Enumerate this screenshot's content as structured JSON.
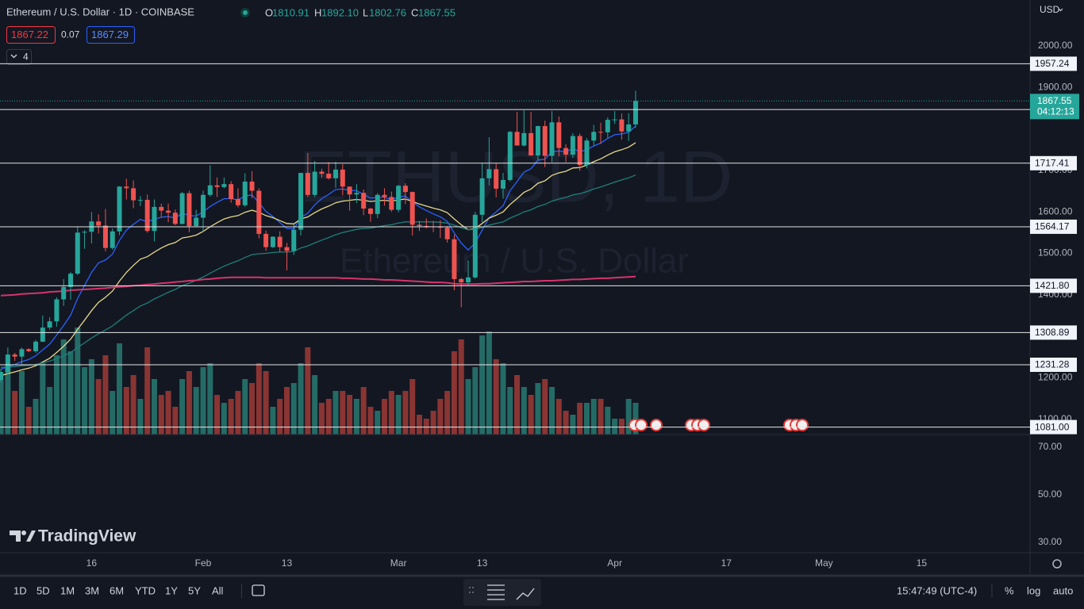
{
  "header": {
    "symbol": "Ethereum / U.S. Dollar · 1D · COINBASE",
    "o": "O",
    "h": "H",
    "l": "L",
    "c": "C",
    "ohlc_labels": [
      "1810.91",
      "1892.10",
      "1802.76",
      "1867.55"
    ],
    "bid": 1867.22,
    "spread": 0.07,
    "ask": 1867.29,
    "legend_count": 4
  },
  "branding": {
    "logo_text": "TradingView"
  },
  "toolbar": {
    "ranges": [
      "1D",
      "5D",
      "1M",
      "3M",
      "6M",
      "YTD",
      "1Y",
      "5Y",
      "All"
    ],
    "clock": "15:47:49 (UTC-4)",
    "percent": "%",
    "log": "log",
    "auto": "auto"
  },
  "chart_data": {
    "type": "candlestick",
    "watermark_symbol": "ETHUSD, 1D",
    "watermark_name": "Ethereum / U.S. Dollar",
    "currency": "USD",
    "up_color": "#26a69a",
    "down_color": "#ef5350",
    "volume_up_color": "#246b66",
    "volume_down_color": "#8a3533",
    "x": [
      "01-03",
      "01-04",
      "01-05",
      "01-06",
      "01-07",
      "01-08",
      "01-09",
      "01-10",
      "01-11",
      "01-12",
      "01-13",
      "01-14",
      "01-15",
      "01-16",
      "01-17",
      "01-18",
      "01-19",
      "01-20",
      "01-21",
      "01-22",
      "01-23",
      "01-24",
      "01-25",
      "01-26",
      "01-27",
      "01-28",
      "01-29",
      "01-30",
      "01-31",
      "02-01",
      "02-02",
      "02-03",
      "02-04",
      "02-05",
      "02-06",
      "02-07",
      "02-08",
      "02-09",
      "02-10",
      "02-11",
      "02-12",
      "02-13",
      "02-14",
      "02-15",
      "02-16",
      "02-17",
      "02-18",
      "02-19",
      "02-20",
      "02-21",
      "02-22",
      "02-23",
      "02-24",
      "02-25",
      "02-26",
      "02-27",
      "02-28",
      "03-01",
      "03-02",
      "03-03",
      "03-04",
      "03-05",
      "03-06",
      "03-07",
      "03-08",
      "03-09",
      "03-10",
      "03-11",
      "03-12",
      "03-13",
      "03-14",
      "03-15",
      "03-16",
      "03-17",
      "03-18",
      "03-19",
      "03-20",
      "03-21",
      "03-22",
      "03-23",
      "03-24",
      "03-25",
      "03-26",
      "03-27",
      "03-28",
      "03-29",
      "03-30",
      "03-31",
      "04-01",
      "04-02",
      "04-03",
      "04-04"
    ],
    "open": [
      1195,
      1214,
      1256,
      1251,
      1269,
      1264,
      1287,
      1321,
      1336,
      1389,
      1419,
      1451,
      1550,
      1552,
      1577,
      1567,
      1513,
      1553,
      1661,
      1657,
      1628,
      1629,
      1554,
      1612,
      1603,
      1598,
      1571,
      1645,
      1566,
      1586,
      1641,
      1664,
      1660,
      1667,
      1631,
      1616,
      1673,
      1651,
      1547,
      1515,
      1540,
      1515,
      1506,
      1557,
      1694,
      1641,
      1697,
      1692,
      1681,
      1702,
      1661,
      1642,
      1646,
      1608,
      1595,
      1641,
      1636,
      1605,
      1663,
      1648,
      1569,
      1566,
      1565,
      1564,
      1562,
      1534,
      1438,
      1430,
      1442,
      1593,
      1681,
      1703,
      1656,
      1677,
      1793,
      1760,
      1790,
      1736,
      1807,
      1735,
      1816,
      1754,
      1738,
      1783,
      1713,
      1772,
      1793,
      1792,
      1822,
      1823,
      1794,
      1810.91
    ],
    "high": [
      1222,
      1273,
      1260,
      1273,
      1271,
      1291,
      1350,
      1346,
      1394,
      1438,
      1455,
      1565,
      1556,
      1600,
      1594,
      1607,
      1560,
      1662,
      1680,
      1676,
      1638,
      1642,
      1630,
      1620,
      1620,
      1606,
      1648,
      1651,
      1605,
      1651,
      1712,
      1683,
      1683,
      1674,
      1657,
      1693,
      1698,
      1657,
      1555,
      1541,
      1553,
      1525,
      1570,
      1694,
      1742,
      1723,
      1704,
      1720,
      1721,
      1715,
      1661,
      1667,
      1654,
      1610,
      1645,
      1657,
      1649,
      1665,
      1669,
      1649,
      1578,
      1584,
      1578,
      1580,
      1566,
      1545,
      1441,
      1483,
      1600,
      1719,
      1780,
      1718,
      1694,
      1795,
      1841,
      1845,
      1841,
      1807,
      1820,
      1843,
      1830,
      1763,
      1790,
      1789,
      1778,
      1810,
      1815,
      1828,
      1843,
      1837,
      1838,
      1892.1
    ],
    "low": [
      1190,
      1209,
      1241,
      1233,
      1262,
      1260,
      1286,
      1316,
      1323,
      1373,
      1388,
      1448,
      1511,
      1524,
      1548,
      1505,
      1509,
      1544,
      1630,
      1609,
      1614,
      1550,
      1529,
      1587,
      1575,
      1568,
      1570,
      1551,
      1563,
      1552,
      1637,
      1636,
      1657,
      1622,
      1611,
      1612,
      1633,
      1536,
      1506,
      1513,
      1503,
      1459,
      1496,
      1543,
      1636,
      1636,
      1683,
      1678,
      1658,
      1640,
      1603,
      1621,
      1592,
      1576,
      1585,
      1615,
      1600,
      1599,
      1619,
      1543,
      1554,
      1560,
      1551,
      1537,
      1526,
      1411,
      1370,
      1423,
      1439,
      1575,
      1664,
      1635,
      1632,
      1673,
      1765,
      1758,
      1739,
      1726,
      1708,
      1720,
      1734,
      1720,
      1730,
      1699,
      1705,
      1760,
      1764,
      1779,
      1812,
      1774,
      1771,
      1802.76
    ],
    "close": [
      1214,
      1256,
      1251,
      1269,
      1264,
      1287,
      1321,
      1336,
      1389,
      1419,
      1451,
      1550,
      1552,
      1577,
      1567,
      1513,
      1553,
      1661,
      1657,
      1628,
      1629,
      1554,
      1612,
      1603,
      1598,
      1571,
      1645,
      1566,
      1586,
      1641,
      1664,
      1660,
      1667,
      1631,
      1616,
      1673,
      1651,
      1547,
      1515,
      1540,
      1515,
      1506,
      1557,
      1694,
      1641,
      1697,
      1692,
      1681,
      1702,
      1661,
      1642,
      1646,
      1608,
      1595,
      1641,
      1636,
      1605,
      1663,
      1648,
      1569,
      1566,
      1565,
      1564,
      1562,
      1534,
      1438,
      1430,
      1442,
      1593,
      1681,
      1703,
      1656,
      1677,
      1793,
      1760,
      1790,
      1736,
      1807,
      1735,
      1816,
      1754,
      1738,
      1783,
      1713,
      1772,
      1793,
      1792,
      1822,
      1823,
      1794,
      1810.91,
      1867.55
    ],
    "volume": [
      70,
      85,
      55,
      80,
      35,
      45,
      90,
      60,
      100,
      120,
      105,
      135,
      85,
      95,
      70,
      100,
      55,
      115,
      60,
      75,
      45,
      110,
      70,
      50,
      55,
      35,
      70,
      80,
      60,
      85,
      90,
      50,
      40,
      45,
      55,
      70,
      65,
      90,
      80,
      35,
      45,
      60,
      65,
      90,
      110,
      75,
      40,
      45,
      55,
      55,
      50,
      45,
      60,
      35,
      30,
      45,
      55,
      50,
      55,
      70,
      25,
      20,
      30,
      45,
      55,
      105,
      120,
      70,
      85,
      125,
      130,
      95,
      90,
      60,
      75,
      60,
      50,
      65,
      70,
      60,
      45,
      30,
      25,
      40,
      40,
      45,
      45,
      35,
      20,
      20,
      45,
      40
    ],
    "volume_ylim": [
      0,
      160
    ],
    "moving_averages": [
      {
        "color": "#2962ff",
        "values": [
          1220,
          1227,
          1232,
          1239,
          1244,
          1253,
          1267,
          1281,
          1303,
          1326,
          1351,
          1391,
          1423,
          1454,
          1477,
          1484,
          1498,
          1531,
          1556,
          1570,
          1582,
          1576,
          1583,
          1587,
          1589,
          1585,
          1597,
          1591,
          1590,
          1600,
          1613,
          1623,
          1632,
          1632,
          1629,
          1638,
          1641,
          1622,
          1601,
          1589,
          1574,
          1560,
          1559,
          1586,
          1597,
          1617,
          1632,
          1642,
          1654,
          1655,
          1652,
          1651,
          1642,
          1633,
          1635,
          1635,
          1629,
          1636,
          1638,
          1624,
          1612,
          1603,
          1595,
          1588,
          1577,
          1549,
          1525,
          1508,
          1525,
          1556,
          1586,
          1600,
          1615,
          1651,
          1673,
          1696,
          1704,
          1725,
          1727,
          1745,
          1747,
          1745,
          1753,
          1745,
          1750,
          1759,
          1766,
          1777,
          1786,
          1788,
          1792,
          1807
        ]
      },
      {
        "color": "#e6d98a",
        "values": [
          1205,
          1210,
          1214,
          1219,
          1223,
          1229,
          1238,
          1247,
          1261,
          1276,
          1293,
          1317,
          1339,
          1362,
          1382,
          1394,
          1409,
          1433,
          1454,
          1471,
          1486,
          1492,
          1503,
          1513,
          1521,
          1526,
          1537,
          1540,
          1544,
          1553,
          1564,
          1574,
          1583,
          1588,
          1591,
          1599,
          1604,
          1599,
          1591,
          1586,
          1579,
          1572,
          1571,
          1583,
          1588,
          1598,
          1607,
          1614,
          1622,
          1626,
          1628,
          1630,
          1628,
          1625,
          1627,
          1628,
          1626,
          1629,
          1631,
          1625,
          1619,
          1614,
          1609,
          1605,
          1598,
          1583,
          1569,
          1557,
          1560,
          1572,
          1585,
          1592,
          1600,
          1618,
          1632,
          1647,
          1655,
          1669,
          1675,
          1688,
          1694,
          1698,
          1706,
          1707,
          1713,
          1721,
          1728,
          1737,
          1745,
          1750,
          1756,
          1767
        ]
      },
      {
        "color": "#1e7f7a",
        "values": [
          1225,
          1226,
          1227,
          1229,
          1230,
          1232,
          1236,
          1240,
          1246,
          1253,
          1261,
          1273,
          1284,
          1296,
          1306,
          1315,
          1325,
          1338,
          1351,
          1362,
          1373,
          1380,
          1390,
          1398,
          1406,
          1413,
          1422,
          1428,
          1435,
          1443,
          1452,
          1461,
          1469,
          1476,
          1482,
          1490,
          1497,
          1499,
          1500,
          1502,
          1503,
          1503,
          1505,
          1513,
          1518,
          1525,
          1532,
          1538,
          1545,
          1550,
          1554,
          1558,
          1560,
          1561,
          1564,
          1567,
          1569,
          1573,
          1576,
          1576,
          1576,
          1576,
          1576,
          1575,
          1573,
          1568,
          1562,
          1557,
          1558,
          1563,
          1568,
          1572,
          1576,
          1585,
          1592,
          1600,
          1605,
          1613,
          1618,
          1626,
          1631,
          1635,
          1641,
          1644,
          1649,
          1655,
          1660,
          1666,
          1672,
          1677,
          1682,
          1689
        ]
      },
      {
        "color": "#d6336c",
        "values": [
          1398,
          1399,
          1400,
          1402,
          1403,
          1404,
          1405,
          1407,
          1408,
          1409,
          1411,
          1412,
          1413,
          1414,
          1415,
          1416,
          1418,
          1419,
          1420,
          1422,
          1423,
          1425,
          1426,
          1428,
          1429,
          1431,
          1432,
          1434,
          1435,
          1437,
          1438,
          1440,
          1441,
          1442,
          1442,
          1442,
          1442,
          1442,
          1441,
          1441,
          1441,
          1441,
          1441,
          1441,
          1441,
          1441,
          1441,
          1441,
          1441,
          1440,
          1440,
          1439,
          1438,
          1438,
          1437,
          1436,
          1436,
          1435,
          1434,
          1433,
          1432,
          1431,
          1430,
          1430,
          1429,
          1427,
          1426,
          1426,
          1426,
          1427,
          1427,
          1428,
          1429,
          1430,
          1431,
          1432,
          1432,
          1433,
          1434,
          1434,
          1435,
          1436,
          1437,
          1437,
          1438,
          1439,
          1440,
          1440,
          1441,
          1442,
          1443,
          1444
        ]
      }
    ],
    "levels": [
      1957.24,
      1846.77,
      1717.41,
      1564.17,
      {
        "value": 1421.8,
        "label": "1421.80"
      },
      1308.89,
      1231.28,
      {
        "value": 1081,
        "label": "1081.00"
      }
    ],
    "countdown": "04:12:13",
    "ylim": [
      1063,
      2111
    ],
    "yticks": [
      {
        "value": 2000,
        "label": "2000.00"
      },
      {
        "value": 1900,
        "label": "1900.00"
      },
      {
        "value": 1700,
        "label": "1700.00"
      },
      {
        "value": 1600,
        "label": "1600.00"
      },
      {
        "value": 1500,
        "label": "1500.00"
      },
      {
        "value": 1400,
        "label": "1400.00"
      },
      {
        "value": 1200,
        "label": "1200.00"
      },
      {
        "value": 1100,
        "label": "1100.00"
      }
    ],
    "xticks": [
      {
        "value": "01-16",
        "label": "16"
      },
      {
        "value": "02-01",
        "label": "Feb"
      },
      {
        "value": "02-13",
        "label": "13"
      },
      {
        "value": "03-01",
        "label": "Mar"
      },
      {
        "value": "03-13",
        "label": "13"
      },
      {
        "value": "04-01",
        "label": "Apr"
      },
      {
        "value": "04-17",
        "label": "17"
      },
      {
        "value": "05-01",
        "label": "May"
      },
      {
        "value": "05-15",
        "label": "15"
      }
    ],
    "lower_pane": {
      "ylim": [
        25.67,
        75.33
      ],
      "yticks": [
        {
          "value": 70,
          "label": "70.00"
        },
        {
          "value": 50,
          "label": "50.00"
        },
        {
          "value": 30,
          "label": "30.00"
        }
      ]
    }
  }
}
